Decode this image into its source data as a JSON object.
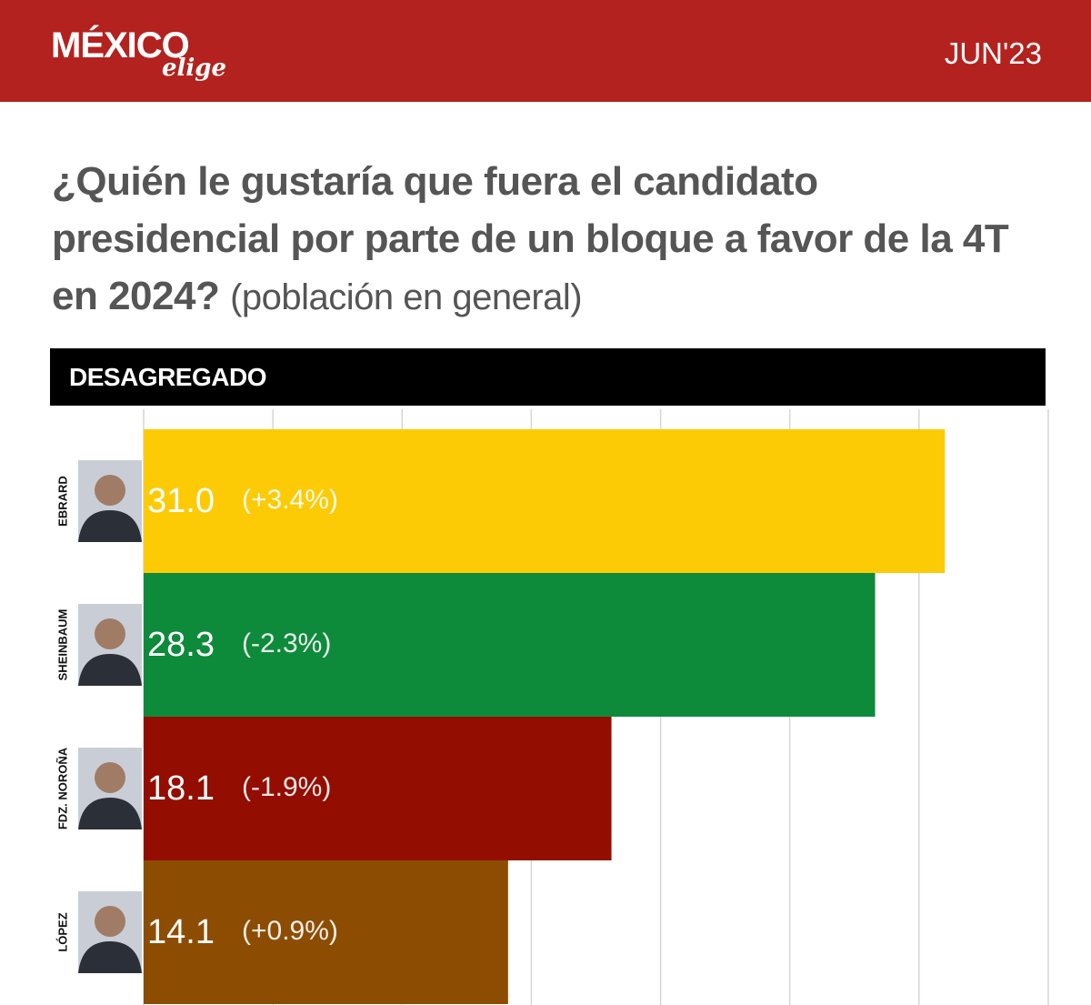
{
  "header": {
    "logo": "MÉXICO",
    "logo_sub": "elige",
    "date": "JUN'23"
  },
  "chart_data": {
    "type": "bar",
    "orientation": "horizontal",
    "title": "¿Quién le gustaría que fuera el candidato presidencial por parte de un bloque a favor de la 4T en 2024?",
    "subtitle": "(población en general)",
    "section_label": "DESAGREGADO",
    "categories": [
      "EBRARD",
      "SHEINBAUM",
      "FDZ. NOROÑA",
      "LÓPEZ"
    ],
    "values": [
      31.0,
      28.3,
      18.1,
      14.1
    ],
    "value_labels": [
      "31.0",
      "28.3",
      "18.1",
      "14.1"
    ],
    "change_labels": [
      "(+3.4%)",
      "(-2.3%)",
      "(-1.9%)",
      "(+0.9%)"
    ],
    "colors": [
      "#fccb06",
      "#0e8a3b",
      "#930d01",
      "#8c4d02"
    ],
    "xlim": [
      0,
      35
    ],
    "xticks": [
      0,
      5,
      10,
      15,
      20,
      25,
      30,
      35
    ],
    "grid": true
  }
}
